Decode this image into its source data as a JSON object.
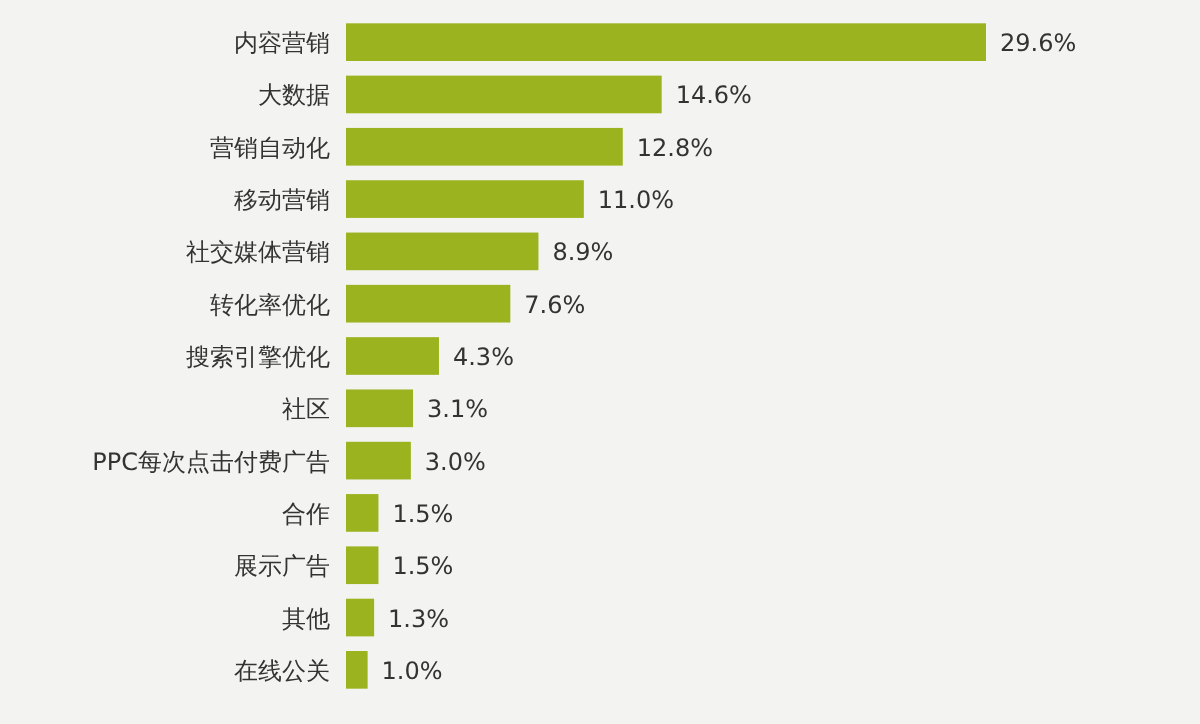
{
  "chart_data": {
    "type": "bar",
    "orientation": "horizontal",
    "color": "#9bb31e",
    "categories": [
      "内容营销",
      "大数据",
      "营销自动化",
      "移动营销",
      "社交媒体营销",
      "转化率优化",
      "搜索引擎优化",
      "社区",
      "PPC每次点击付费广告",
      "合作",
      "展示广告",
      "其他",
      "在线公关"
    ],
    "values": [
      29.6,
      14.6,
      12.8,
      11.0,
      8.9,
      7.6,
      4.3,
      3.1,
      3.0,
      1.5,
      1.5,
      1.3,
      1.0
    ],
    "value_labels": [
      "29.6%",
      "14.6%",
      "12.8%",
      "11.0%",
      "8.9%",
      "7.6%",
      "4.3%",
      "3.1%",
      "3.0%",
      "1.5%",
      "1.5%",
      "1.3%",
      "1.0%"
    ]
  }
}
